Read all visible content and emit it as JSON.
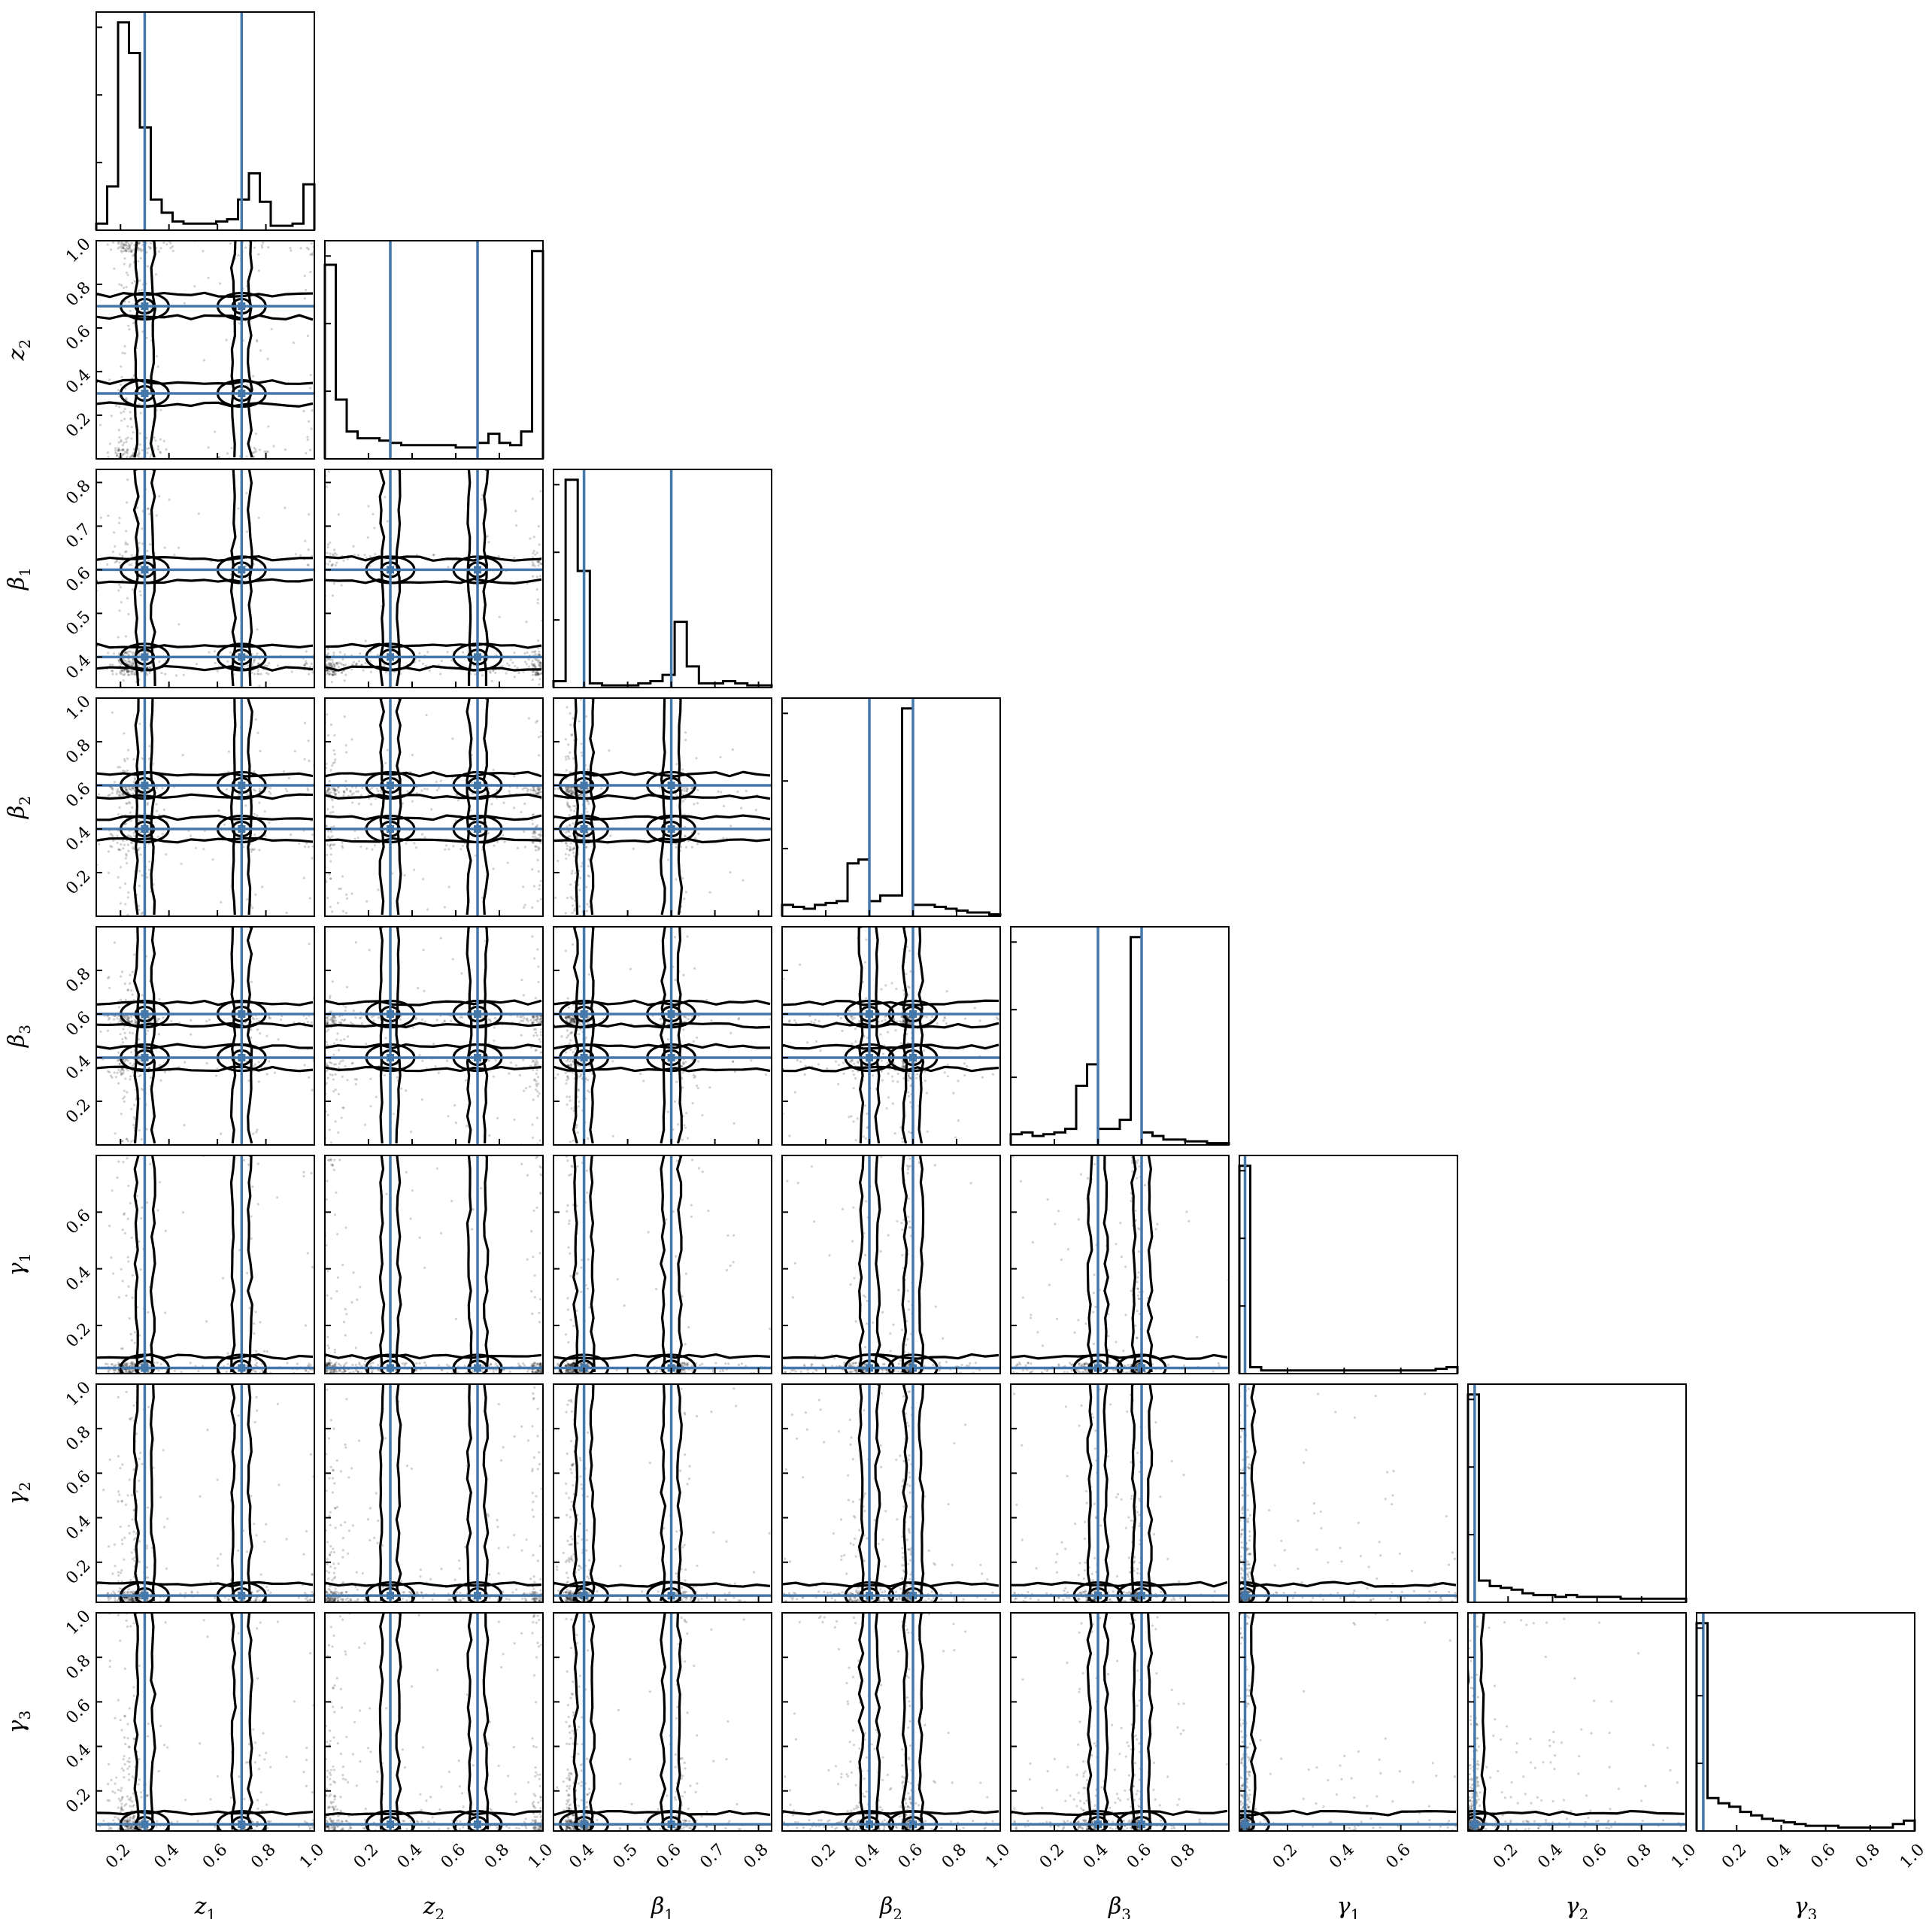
{
  "chart_data": {
    "type": "corner",
    "parameters": [
      {
        "key": "z1",
        "label": "z",
        "sub": "1",
        "greek": false,
        "range": [
          0.1,
          1.0
        ],
        "ticks": [
          0.2,
          0.4,
          0.6,
          0.8,
          1.0
        ],
        "tick_labels": [
          "0.2",
          "0.4",
          "0.6",
          "0.8",
          "1.0"
        ],
        "truths": [
          0.3,
          0.7
        ]
      },
      {
        "key": "z2",
        "label": "z",
        "sub": "2",
        "greek": false,
        "range": [
          0.0,
          1.0
        ],
        "ticks": [
          0.2,
          0.4,
          0.6,
          0.8,
          1.0
        ],
        "tick_labels": [
          "0.2",
          "0.4",
          "0.6",
          "0.8",
          "1.0"
        ],
        "truths": [
          0.3,
          0.7
        ]
      },
      {
        "key": "beta1",
        "label": "β",
        "sub": "1",
        "greek": true,
        "range": [
          0.33,
          0.83
        ],
        "ticks": [
          0.4,
          0.5,
          0.6,
          0.7,
          0.8
        ],
        "tick_labels": [
          "0.4",
          "0.5",
          "0.6",
          "0.7",
          "0.8"
        ],
        "truths": [
          0.4,
          0.6
        ]
      },
      {
        "key": "beta2",
        "label": "β",
        "sub": "2",
        "greek": true,
        "range": [
          0.0,
          1.0
        ],
        "ticks": [
          0.2,
          0.4,
          0.6,
          0.8,
          1.0
        ],
        "tick_labels": [
          "0.2",
          "0.4",
          "0.6",
          "0.8",
          "1.0"
        ],
        "truths": [
          0.4,
          0.6
        ]
      },
      {
        "key": "beta3",
        "label": "β",
        "sub": "3",
        "greek": true,
        "range": [
          0.0,
          1.0
        ],
        "ticks": [
          0.2,
          0.4,
          0.6,
          0.8
        ],
        "tick_labels": [
          "0.2",
          "0.4",
          "0.6",
          "0.8"
        ],
        "truths": [
          0.4,
          0.6
        ]
      },
      {
        "key": "gamma1",
        "label": "γ",
        "sub": "1",
        "greek": true,
        "range": [
          0.03,
          0.8
        ],
        "ticks": [
          0.2,
          0.4,
          0.6
        ],
        "tick_labels": [
          "0.2",
          "0.4",
          "0.6"
        ],
        "truths": [
          0.05
        ]
      },
      {
        "key": "gamma2",
        "label": "γ",
        "sub": "2",
        "greek": true,
        "range": [
          0.02,
          1.0
        ],
        "ticks": [
          0.2,
          0.4,
          0.6,
          0.8,
          1.0
        ],
        "tick_labels": [
          "0.2",
          "0.4",
          "0.6",
          "0.8",
          "1.0"
        ],
        "truths": [
          0.05
        ]
      },
      {
        "key": "gamma3",
        "label": "γ",
        "sub": "3",
        "greek": true,
        "range": [
          0.02,
          1.0
        ],
        "ticks": [
          0.2,
          0.4,
          0.6,
          0.8,
          1.0
        ],
        "tick_labels": [
          "0.2",
          "0.4",
          "0.6",
          "0.8",
          "1.0"
        ],
        "truths": [
          0.05
        ]
      }
    ],
    "histograms": [
      {
        "param": "z1",
        "counts": [
          0.3,
          2.0,
          9.5,
          8.1,
          4.7,
          1.4,
          0.8,
          0.4,
          0.3,
          0.3,
          0.3,
          0.4,
          0.5,
          1.4,
          2.6,
          1.3,
          0.2,
          0.2,
          0.3,
          2.1
        ]
      },
      {
        "param": "z2",
        "counts": [
          8.5,
          2.6,
          1.2,
          0.9,
          0.9,
          0.8,
          0.7,
          0.6,
          0.6,
          0.6,
          0.6,
          0.6,
          0.5,
          0.5,
          0.7,
          1.1,
          0.7,
          0.6,
          1.2,
          9.1
        ]
      },
      {
        "param": "beta1",
        "counts": [
          0.3,
          9.8,
          5.5,
          0.2,
          0.1,
          0.1,
          0.1,
          0.2,
          0.3,
          0.6,
          3.1,
          1.0,
          0.2,
          0.2,
          0.3,
          0.2,
          0.1,
          0.1
        ]
      },
      {
        "param": "beta2",
        "counts": [
          0.6,
          0.5,
          0.4,
          0.6,
          0.7,
          0.8,
          2.8,
          3.0,
          0.8,
          1.1,
          1.1,
          11.0,
          0.6,
          0.6,
          0.5,
          0.4,
          0.3,
          0.2,
          0.2,
          0.1
        ]
      },
      {
        "param": "beta3",
        "counts": [
          0.6,
          0.7,
          0.5,
          0.6,
          0.7,
          0.9,
          3.3,
          4.5,
          0.9,
          0.9,
          1.4,
          11.6,
          0.7,
          0.5,
          0.3,
          0.3,
          0.2,
          0.2,
          0.1,
          0.1
        ]
      },
      {
        "param": "gamma1",
        "counts": [
          13.0,
          0.4,
          0.2,
          0.2,
          0.2,
          0.2,
          0.2,
          0.2,
          0.2,
          0.2,
          0.2,
          0.2,
          0.2,
          0.2,
          0.2,
          0.2,
          0.2,
          0.2,
          0.3,
          0.4
        ]
      },
      {
        "param": "gamma2",
        "counts": [
          11.5,
          1.2,
          0.9,
          0.8,
          0.7,
          0.5,
          0.4,
          0.4,
          0.3,
          0.4,
          0.3,
          0.3,
          0.3,
          0.3,
          0.2,
          0.2,
          0.2,
          0.2,
          0.2,
          0.2
        ]
      },
      {
        "param": "gamma3",
        "counts": [
          12.0,
          1.9,
          1.6,
          1.4,
          1.1,
          0.9,
          0.7,
          0.6,
          0.5,
          0.4,
          0.3,
          0.3,
          0.3,
          0.2,
          0.2,
          0.2,
          0.2,
          0.2,
          0.4,
          0.6
        ]
      }
    ],
    "panel_grid": "8x8 lower-triangular",
    "truth_color": "#4477aa",
    "series_color": "#000000"
  }
}
